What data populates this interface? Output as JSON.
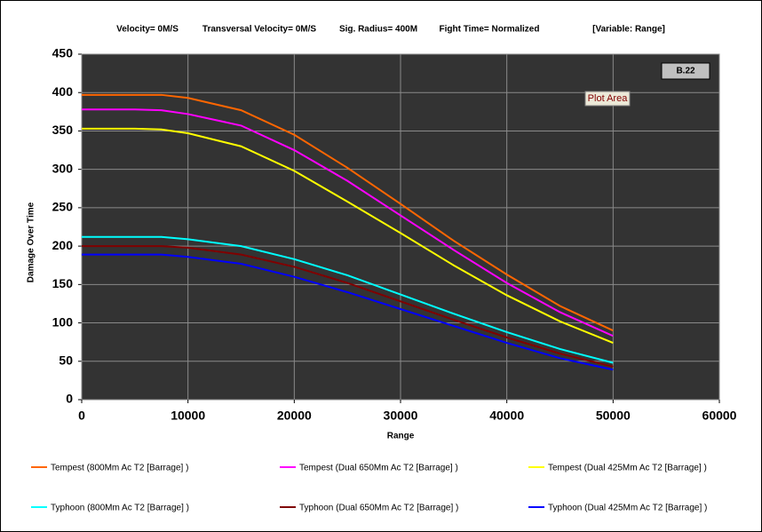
{
  "chart_data": {
    "type": "line",
    "subtitles": [
      "Velocity= 0M/S",
      "Transversal Velocity= 0M/S",
      "Sig. Radius= 400M",
      "Fight Time= Normalized",
      "[Variable: Range]"
    ],
    "annotations": [
      "B.22",
      "Plot Area"
    ],
    "x_label": "Range",
    "y_label": "Damage Over Time",
    "x": [
      0,
      5000,
      7500,
      10000,
      15000,
      20000,
      25000,
      30000,
      35000,
      40000,
      45000,
      50000
    ],
    "series": [
      {
        "name": "Tempest (800Mm Ac T2 [Barrage] )",
        "color": "#ff6600",
        "values": [
          397,
          397,
          397,
          393,
          377,
          345,
          302,
          255,
          207,
          163,
          122,
          90
        ]
      },
      {
        "name": "Tempest (Dual 650Mm Ac T2 [Barrage] )",
        "color": "#ff00ff",
        "values": [
          378,
          378,
          377,
          372,
          357,
          325,
          285,
          240,
          195,
          152,
          114,
          83
        ]
      },
      {
        "name": "Tempest (Dual 425Mm Ac T2 [Barrage] )",
        "color": "#ffff00",
        "values": [
          353,
          353,
          352,
          347,
          330,
          298,
          258,
          217,
          175,
          136,
          102,
          74
        ]
      },
      {
        "name": "Typhoon (800Mm Ac T2 [Barrage] )",
        "color": "#00ffff",
        "values": [
          212,
          212,
          212,
          209,
          200,
          183,
          162,
          137,
          112,
          88,
          66,
          48
        ]
      },
      {
        "name": "Typhoon (Dual 650Mm Ac T2 [Barrage] )",
        "color": "#800000",
        "values": [
          200,
          200,
          200,
          198,
          189,
          173,
          152,
          128,
          104,
          81,
          60,
          43
        ]
      },
      {
        "name": "Typhoon (Dual 425Mm Ac T2 [Barrage] )",
        "color": "#0000ff",
        "values": [
          189,
          189,
          189,
          186,
          177,
          160,
          140,
          118,
          96,
          74,
          54,
          39
        ]
      }
    ],
    "xlim": [
      0,
      60000
    ],
    "xticks": [
      0,
      10000,
      20000,
      30000,
      40000,
      50000,
      60000
    ],
    "ylim": [
      0,
      450
    ],
    "yticks": [
      0,
      50,
      100,
      150,
      200,
      250,
      300,
      350,
      400,
      450
    ],
    "grid": true,
    "plot_background": "#333333"
  }
}
